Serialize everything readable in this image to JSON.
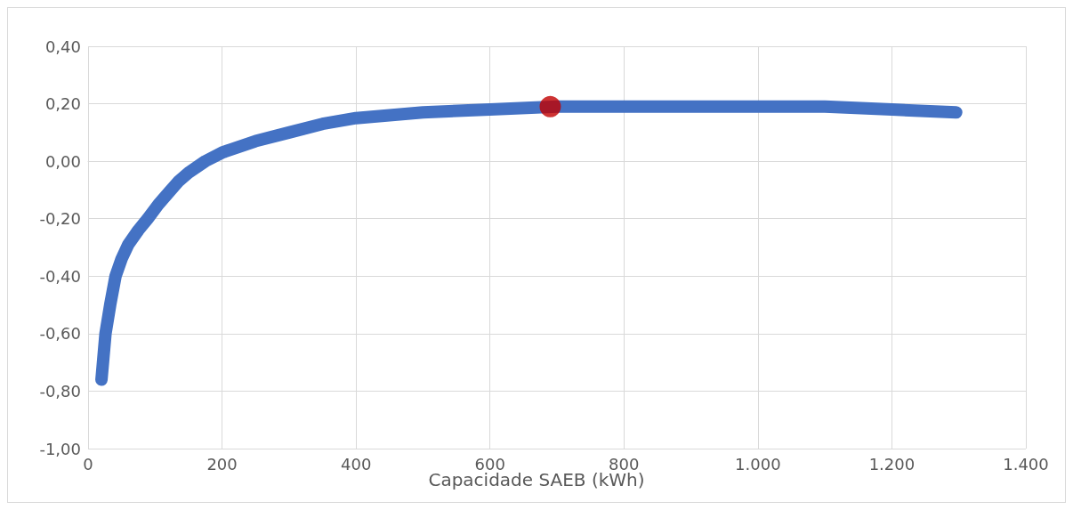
{
  "chart_data": {
    "type": "line",
    "xlabel": "Capacidade SAEB (kWh)",
    "series": [
      {
        "color": "#4472c4",
        "x": [
          20,
          26,
          33,
          41,
          50,
          60,
          75,
          89,
          105,
          120,
          135,
          150,
          175,
          200,
          250,
          300,
          350,
          400,
          500,
          600,
          700,
          800,
          900,
          1000,
          1100,
          1200,
          1296
        ],
        "values": [
          -0.76,
          -0.6,
          -0.5,
          -0.4,
          -0.34,
          -0.29,
          -0.24,
          -0.2,
          -0.15,
          -0.11,
          -0.07,
          -0.04,
          0.0,
          0.03,
          0.07,
          0.1,
          0.13,
          0.15,
          0.17,
          0.18,
          0.19,
          0.19,
          0.19,
          0.19,
          0.19,
          0.18,
          0.17
        ]
      },
      {
        "type": "scatter",
        "color": "#c00000",
        "x": [
          690
        ],
        "values": [
          0.19
        ]
      }
    ],
    "xlim": [
      0,
      1400
    ],
    "xticks": [
      {
        "value": 0,
        "label": "0"
      },
      {
        "value": 200,
        "label": "200"
      },
      {
        "value": 400,
        "label": "400"
      },
      {
        "value": 600,
        "label": "600"
      },
      {
        "value": 800,
        "label": "800"
      },
      {
        "value": 1000,
        "label": "1.000"
      },
      {
        "value": 1200,
        "label": "1.200"
      },
      {
        "value": 1400,
        "label": "1.400"
      }
    ],
    "ylim": [
      -1,
      0.4
    ],
    "yticks": [
      {
        "value": -1,
        "label": "-1,00"
      },
      {
        "value": -0.8,
        "label": "-0,80"
      },
      {
        "value": -0.6,
        "label": "-0,60"
      },
      {
        "value": -0.4,
        "label": "-0,40"
      },
      {
        "value": -0.2,
        "label": "-0,20"
      },
      {
        "value": 0,
        "label": "0,00"
      },
      {
        "value": 0.2,
        "label": "0,20"
      },
      {
        "value": 0.4,
        "label": "0,40"
      }
    ],
    "grid": true,
    "line_style": "solid"
  }
}
